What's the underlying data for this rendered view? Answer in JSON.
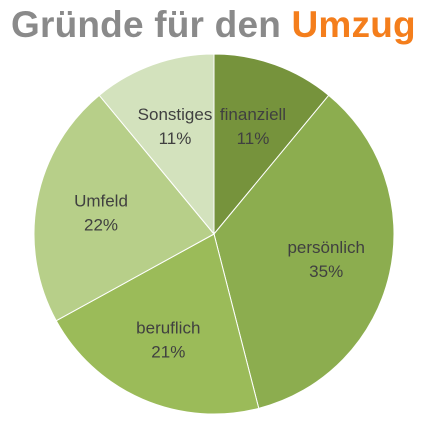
{
  "title": {
    "main": "Gründe für den",
    "accent": "Umzug",
    "main_color": "#8a8a8a",
    "accent_color": "#f47e1c"
  },
  "chart_data": {
    "type": "pie",
    "title": "Gründe für den Umzug",
    "start": "12 o'clock",
    "direction": "clockwise",
    "legend": "none",
    "data_labels": "category and percent, inside slices",
    "slices": [
      {
        "label": "finanziell",
        "value": 11,
        "percent_label": "11%",
        "color": "#76933c"
      },
      {
        "label": "persönlich",
        "value": 35,
        "percent_label": "35%",
        "color": "#8cad4f"
      },
      {
        "label": "beruflich",
        "value": 21,
        "percent_label": "21%",
        "color": "#9bbb59"
      },
      {
        "label": "Umfeld",
        "value": 22,
        "percent_label": "22%",
        "color": "#b7cf89"
      },
      {
        "label": "Sonstiges",
        "value": 11,
        "percent_label": "11%",
        "color": "#d3e2bd"
      }
    ]
  }
}
